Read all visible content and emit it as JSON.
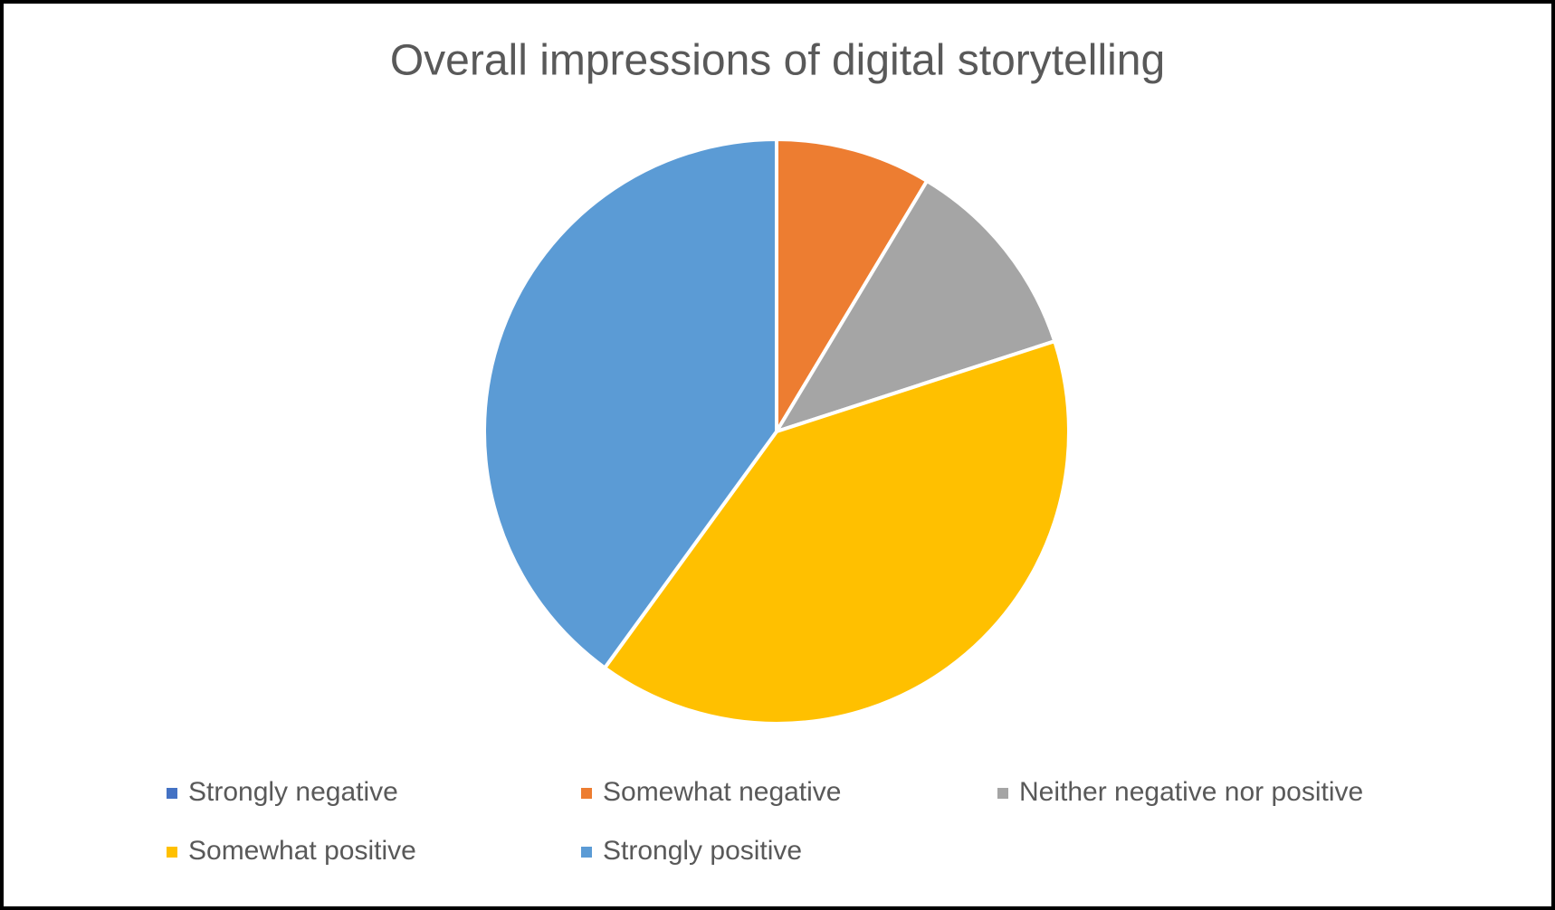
{
  "chart_data": {
    "type": "pie",
    "title": "Overall impressions of digital storytelling",
    "categories": [
      "Strongly negative",
      "Somewhat negative",
      "Neither negative nor positive",
      "Somewhat positive",
      "Strongly positive"
    ],
    "values": [
      0,
      8.6,
      11.4,
      40,
      40
    ],
    "colors": [
      "#4472c4",
      "#ed7d31",
      "#a5a5a5",
      "#ffc000",
      "#5b9bd5"
    ],
    "legend": "bottom"
  }
}
